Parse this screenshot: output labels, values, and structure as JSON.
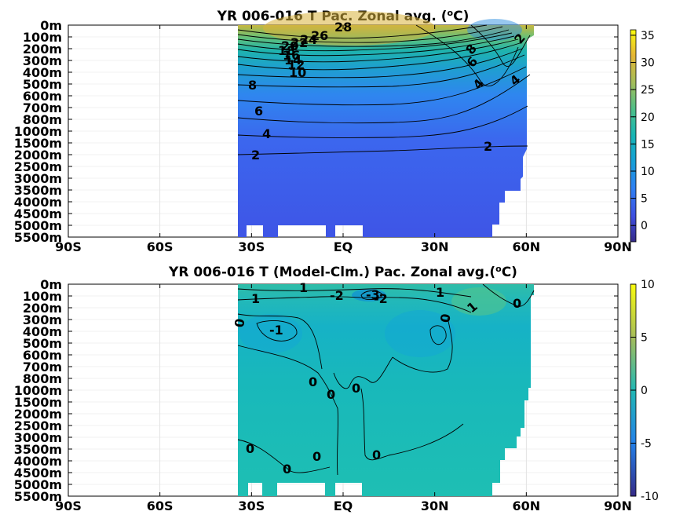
{
  "chart_data": [
    {
      "type": "heatmap",
      "title": "YR 006-016 T Pac. Zonal avg. (",
      "title_sup": "o",
      "title_tail": "C)",
      "x_ticks": [
        "90S",
        "60S",
        "30S",
        "EQ",
        "30N",
        "60N",
        "90N"
      ],
      "xlim": [
        -90,
        90
      ],
      "y_ticks": [
        "0m",
        "100m",
        "200m",
        "300m",
        "400m",
        "500m",
        "600m",
        "700m",
        "800m",
        "1000m",
        "1500m",
        "2000m",
        "2500m",
        "3000m",
        "3500m",
        "4000m",
        "4500m",
        "5000m",
        "5500m"
      ],
      "colorbar": {
        "ticks": [
          "35",
          "30",
          "25",
          "20",
          "15",
          "10",
          "5",
          "0"
        ],
        "min": -3,
        "max": 36
      },
      "data_lon_range": [
        -35,
        62
      ],
      "contour_labels": [
        "28",
        "26",
        "24",
        "22",
        "20",
        "18",
        "16",
        "14",
        "12",
        "10",
        "8",
        "6",
        "4",
        "2",
        "2",
        "8",
        "6",
        "4",
        "2",
        "4"
      ],
      "grid": true
    },
    {
      "type": "heatmap",
      "title": "YR 006-016 T (Model-Clm.) Pac. Zonal avg.(",
      "title_sup": "o",
      "title_tail": "C)",
      "x_ticks": [
        "90S",
        "60S",
        "30S",
        "EQ",
        "30N",
        "60N",
        "90N"
      ],
      "xlim": [
        -90,
        90
      ],
      "y_ticks": [
        "0m",
        "100m",
        "200m",
        "300m",
        "400m",
        "500m",
        "600m",
        "700m",
        "800m",
        "1000m",
        "1500m",
        "2000m",
        "2500m",
        "3000m",
        "3500m",
        "4000m",
        "4500m",
        "5000m",
        "5500m"
      ],
      "colorbar": {
        "ticks": [
          "10",
          "5",
          "0",
          "-5",
          "-10"
        ],
        "min": -10,
        "max": 10
      },
      "data_lon_range": [
        -35,
        62
      ],
      "contour_labels": [
        "1",
        "1",
        "-2",
        "-3",
        "-2",
        "1",
        "1",
        "0",
        "0",
        "-1",
        "0",
        "0",
        "0",
        "0",
        "0",
        "0",
        "0",
        "0"
      ],
      "grid": true
    }
  ]
}
